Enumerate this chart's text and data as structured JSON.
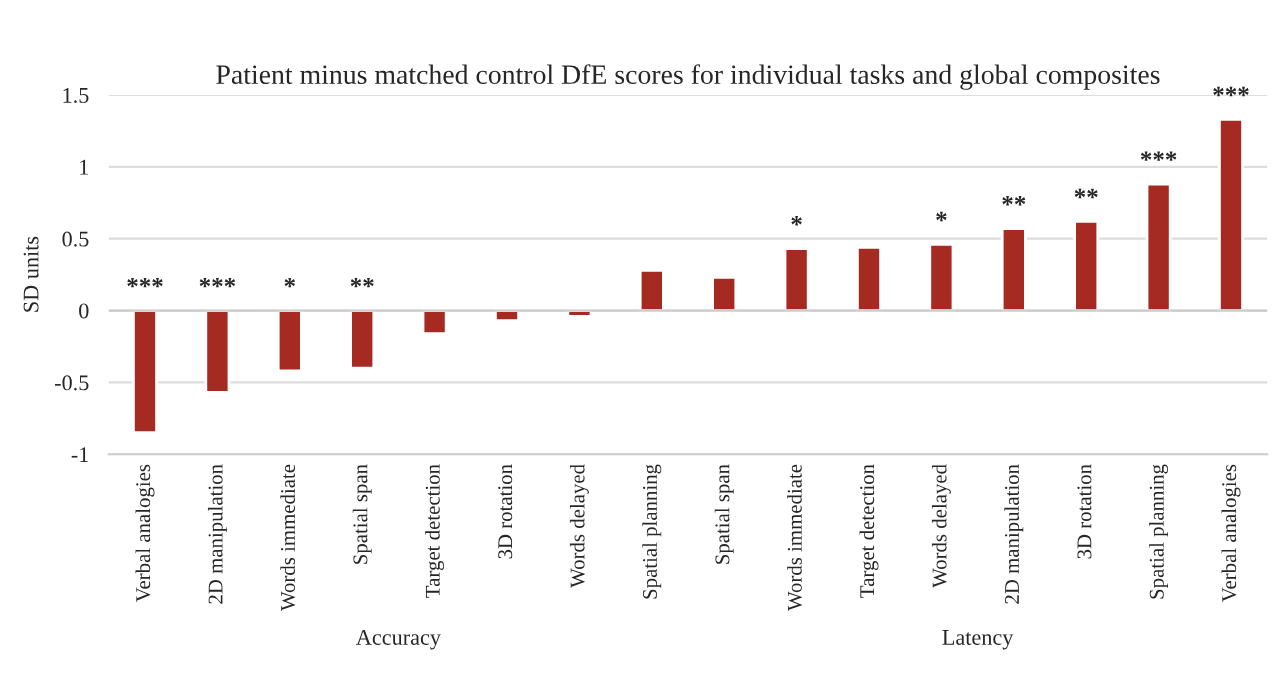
{
  "chart_data": {
    "type": "bar",
    "title": "Patient minus matched control DfE scores for individual tasks and global composites",
    "ylabel": "SD units",
    "categories": [
      "Verbal analogies",
      "2D manipulation",
      "Words immediate",
      "Spatial span",
      "Target detection",
      "3D rotation",
      "Words delayed",
      "Spatial planning",
      "Spatial span",
      "Words immediate",
      "Target detection",
      "Words delayed",
      "2D manipulation",
      "3D rotation",
      "Spatial planning",
      "Verbal analogies"
    ],
    "values": [
      -0.85,
      -0.57,
      -0.42,
      -0.4,
      -0.16,
      -0.07,
      -0.04,
      0.28,
      0.23,
      0.43,
      0.44,
      0.46,
      0.57,
      0.62,
      0.88,
      1.33
    ],
    "value_labels": [
      "***",
      "***",
      "*",
      "**",
      null,
      null,
      null,
      null,
      null,
      "*",
      null,
      "*",
      "**",
      "**",
      "***",
      "***"
    ],
    "color": "#a52a22",
    "ylim": [
      -1,
      1.5
    ],
    "yticks": [
      -1,
      -0.5,
      0,
      0.5,
      1,
      1.5
    ],
    "grid": "y",
    "annotations": [
      "Accuracy",
      "Latency"
    ]
  }
}
